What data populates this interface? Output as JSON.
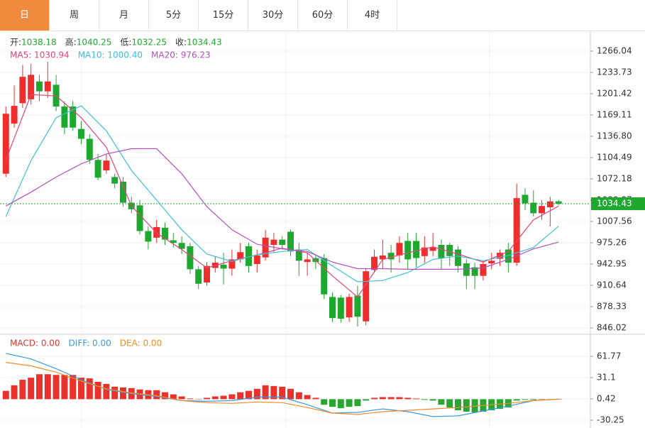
{
  "tabs": [
    "日",
    "周",
    "月",
    "5分",
    "15分",
    "30分",
    "60分",
    "4时"
  ],
  "active_tab": 0,
  "chart_data": [
    {
      "type": "candlestick",
      "ohlc_header": [
        {
          "label": "开:",
          "value": "1038.18"
        },
        {
          "label": "高:",
          "value": "1040.25"
        },
        {
          "label": "低:",
          "value": "1032.25"
        },
        {
          "label": "收:",
          "value": "1034.43"
        }
      ],
      "up_color": "#ee2d2d",
      "down_color": "#1fa82f",
      "open": [
        1080,
        1156,
        1187,
        1193,
        1220,
        1205,
        1215,
        1182,
        1182,
        1148,
        1133,
        1101,
        1085,
        1075,
        1068,
        1036,
        1032,
        993,
        983,
        998,
        979,
        975,
        970,
        935,
        915,
        937,
        942,
        936,
        950,
        970,
        943,
        953,
        972,
        980,
        992,
        965,
        946,
        952,
        952,
        893,
        892,
        862,
        895,
        856,
        934,
        950,
        960,
        956,
        978,
        978,
        955,
        963,
        972,
        972,
        965,
        944,
        938,
        925,
        944,
        951,
        965,
        945,
        1048,
        1036,
        1020,
        1029,
        1038.18
      ],
      "high": [
        1182,
        1214,
        1245,
        1247,
        1230,
        1250,
        1230,
        1190,
        1190,
        1160,
        1140,
        1110,
        1110,
        1080,
        1075,
        1045,
        1040,
        1000,
        1010,
        1006,
        990,
        985,
        975,
        940,
        946,
        955,
        960,
        965,
        975,
        975,
        965,
        995,
        990,
        985,
        995,
        975,
        960,
        958,
        958,
        900,
        896,
        898,
        910,
        936,
        965,
        980,
        972,
        985,
        990,
        990,
        985,
        990,
        980,
        975,
        970,
        950,
        945,
        948,
        960,
        965,
        975,
        1065,
        1058,
        1055,
        1040,
        1045,
        1040.25
      ],
      "low": [
        1075,
        1150,
        1180,
        1185,
        1190,
        1195,
        1175,
        1140,
        1145,
        1125,
        1095,
        1070,
        1080,
        1058,
        1030,
        1020,
        988,
        965,
        975,
        972,
        968,
        958,
        928,
        905,
        910,
        930,
        912,
        925,
        945,
        930,
        930,
        948,
        960,
        965,
        955,
        925,
        925,
        935,
        890,
        855,
        854,
        855,
        848,
        850,
        930,
        935,
        930,
        945,
        935,
        938,
        945,
        955,
        935,
        940,
        930,
        905,
        905,
        918,
        935,
        940,
        930,
        940,
        1025,
        1015,
        1010,
        1000,
        1032.25
      ],
      "close": [
        1171,
        1183,
        1227,
        1230,
        1205,
        1220,
        1182,
        1150,
        1150,
        1133,
        1101,
        1074,
        1100,
        1065,
        1036,
        1026,
        993,
        977,
        999,
        980,
        975,
        966,
        935,
        913,
        940,
        945,
        936,
        950,
        961,
        940,
        956,
        983,
        980,
        972,
        962,
        948,
        950,
        946,
        897,
        861,
        860,
        893,
        863,
        932,
        954,
        956,
        950,
        975,
        950,
        952,
        968,
        968,
        952,
        955,
        940,
        925,
        925,
        943,
        948,
        960,
        945,
        1043,
        1035,
        1020,
        1031,
        1038,
        1034.43
      ],
      "series": [
        {
          "name": "MA5: 1030.94",
          "color": "#e8427c",
          "x": [
            0,
            3,
            6,
            9,
            12,
            15,
            18,
            21,
            24,
            27,
            30,
            33,
            36,
            39,
            42,
            45,
            48,
            51,
            54,
            57,
            60,
            63,
            66
          ],
          "values": [
            1101,
            1200,
            1198,
            1165,
            1120,
            1031,
            990,
            965,
            937,
            948,
            957,
            967,
            960,
            925,
            893,
            950,
            960,
            969,
            958,
            946,
            962,
            1010,
            1030.94
          ]
        },
        {
          "name": "MA10: 1000.40",
          "color": "#3fc0d8",
          "x": [
            0,
            3,
            6,
            9,
            12,
            15,
            18,
            21,
            24,
            27,
            30,
            33,
            36,
            39,
            42,
            45,
            48,
            51,
            54,
            57,
            60,
            63,
            66
          ],
          "values": [
            1015,
            1100,
            1165,
            1183,
            1145,
            1085,
            1040,
            995,
            958,
            947,
            957,
            962,
            965,
            940,
            916,
            918,
            930,
            950,
            955,
            948,
            956,
            968,
            1000.4
          ]
        },
        {
          "name": "MA20: 976.23",
          "color": "#b350c0",
          "x": [
            0,
            3,
            6,
            9,
            12,
            15,
            18,
            21,
            24,
            27,
            30,
            33,
            36,
            39,
            42,
            45,
            48,
            51,
            54,
            57,
            60,
            63,
            66
          ],
          "values": [
            1031,
            1052,
            1075,
            1095,
            1110,
            1118,
            1118,
            1080,
            1030,
            995,
            973,
            966,
            962,
            946,
            936,
            936,
            935,
            935,
            935,
            937,
            950,
            966,
            976.23
          ]
        }
      ],
      "last_price": 1034.43,
      "last_color": "#1fa82f",
      "xlim": [
        -0.7,
        69.8
      ],
      "ylim": [
        837.4,
        1291.9
      ],
      "yticks": [
        846.02,
        878.33,
        910.64,
        942.95,
        975.26,
        1007.56,
        1039.87,
        1072.18,
        1104.49,
        {
          "value": 1136.8,
          "label": "1136.80"
        },
        1169.11,
        1201.42,
        1233.73,
        1266.04
      ],
      "grid": true
    },
    {
      "type": "macd",
      "xlim": [
        -0.7,
        69.8
      ],
      "ylim": [
        -41.5,
        89.4
      ],
      "yticks": [
        -30.25,
        0.42,
        31.1,
        61.77
      ],
      "grid": true,
      "series": [
        {
          "name": "MACD: 0.00",
          "color": "#e8322b",
          "negative_color": "#2aa532",
          "values": [
            12,
            20,
            28,
            31,
            36,
            36,
            35,
            35,
            35,
            31,
            30,
            25,
            22,
            18,
            17,
            16,
            14,
            13,
            13,
            10,
            7,
            4,
            1,
            0.5,
            2,
            4,
            5,
            7,
            10,
            12,
            15,
            20,
            19,
            18,
            15,
            10,
            6,
            2,
            -8,
            -11,
            -13,
            -11,
            -10,
            -2,
            2,
            3,
            3,
            3,
            2,
            1,
            -1,
            -2,
            -8,
            -12,
            -16,
            -18,
            -19,
            -18,
            -16,
            -14,
            -12,
            -2,
            -1,
            -1,
            0,
            0,
            0
          ]
        },
        {
          "name": "DIFF: 0.00",
          "color": "#3a9ae0",
          "x": [
            0,
            3,
            6,
            9,
            12,
            15,
            18,
            21,
            24,
            27,
            30,
            33,
            36,
            39,
            42,
            45,
            48,
            51,
            54,
            57,
            60,
            63,
            66
          ],
          "values": [
            66,
            58,
            44,
            28,
            14,
            8,
            4,
            -2,
            -3,
            -2,
            3,
            3,
            -8,
            -20,
            -19,
            -14,
            -18,
            -25,
            -24,
            -17,
            -10,
            -2,
            0
          ]
        },
        {
          "name": "DEA: 0.00",
          "color": "#f28c28",
          "x": [
            0,
            3,
            6,
            9,
            12,
            15,
            18,
            21,
            24,
            27,
            30,
            33,
            36,
            39,
            42,
            45,
            48,
            51,
            54,
            57,
            60,
            63,
            66
          ],
          "values": [
            53,
            48,
            39,
            26,
            15,
            9,
            5,
            -2,
            -5,
            -6,
            -4,
            -5,
            -12,
            -20,
            -22,
            -18,
            -16,
            -14,
            -12,
            -9,
            -6,
            -2,
            0
          ]
        }
      ]
    }
  ]
}
